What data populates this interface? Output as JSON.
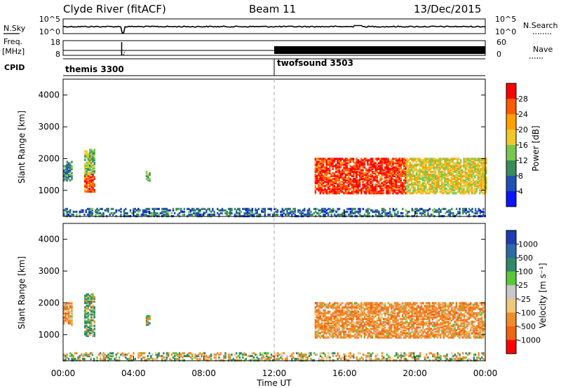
{
  "header": {
    "station": "Clyde River (fitACF)",
    "beam": "Beam 11",
    "date": "13/Dec/2015"
  },
  "top_panels": {
    "nsky_label": "N.Sky",
    "nsky_ticks": [
      "10^5",
      "10^0"
    ],
    "nsearch_label": "N.Search",
    "freq_label": "Freq.",
    "freq_unit": "[MHz]",
    "freq_ticks": [
      "18",
      "8"
    ],
    "nave_label": "Nave",
    "nave_ticks": [
      "60",
      "0"
    ],
    "cpid_label": "CPID",
    "cpid_segments": [
      {
        "name": "themis 3300",
        "start_hour": 0
      },
      {
        "name": "twofsound 3503",
        "start_hour": 12
      }
    ]
  },
  "power_panel": {
    "ylabel": "Slant Range [km]",
    "colorbar_label": "Power [dB]",
    "colorbar_ticks": [
      "28",
      "24",
      "20",
      "16",
      "12",
      "8",
      "4"
    ],
    "colors": [
      "#ff0000",
      "#ff5a00",
      "#ffa000",
      "#f0c828",
      "#78c850",
      "#3a8c5a",
      "#2050b4",
      "#0a14ff"
    ]
  },
  "velocity_panel": {
    "ylabel": "Slant Range [km]",
    "colorbar_label": "Velocity [m s⁻¹]",
    "colorbar_ticks": [
      "1000",
      "500",
      "100",
      "25",
      "-25",
      "-100",
      "-500",
      "-1000"
    ],
    "colors": [
      "#1e3cb4",
      "#2f6aa8",
      "#2f8a6a",
      "#5ac83c",
      "#c8c8c8",
      "#f0c878",
      "#f08c28",
      "#f06414",
      "#ff0000"
    ]
  },
  "xlabel": "Time UT",
  "chart_data": [
    {
      "type": "heatmap",
      "title": "Power [dB]",
      "xlabel": "Time UT",
      "ylabel": "Slant Range [km]",
      "x_ticks": [
        "00:00",
        "04:00",
        "08:00",
        "12:00",
        "16:00",
        "20:00",
        "00:00"
      ],
      "y_ticks": [
        1000,
        2000,
        3000,
        4000
      ],
      "xlim_hours": [
        0,
        24
      ],
      "ylim_km": [
        180,
        4500
      ],
      "colorbar_range_db": [
        0,
        32
      ],
      "features": [
        {
          "t_start_h": 0.0,
          "t_end_h": 0.5,
          "range_km": [
            1300,
            1900
          ],
          "value_db": 10
        },
        {
          "t_start_h": 1.2,
          "t_end_h": 1.8,
          "range_km": [
            950,
            1500
          ],
          "value_db": 26
        },
        {
          "t_start_h": 1.2,
          "t_end_h": 1.8,
          "range_km": [
            1500,
            2300
          ],
          "value_db": 14
        },
        {
          "t_start_h": 4.7,
          "t_end_h": 4.9,
          "range_km": [
            1300,
            1600
          ],
          "value_db": 12
        },
        {
          "t_start_h": 14.3,
          "t_end_h": 19.5,
          "range_km": [
            900,
            2000
          ],
          "value_db": 28
        },
        {
          "t_start_h": 19.5,
          "t_end_h": 24.0,
          "range_km": [
            900,
            2000
          ],
          "value_db": 18
        },
        {
          "t_start_h": 0.0,
          "t_end_h": 24.0,
          "range_km": [
            180,
            450
          ],
          "value_db": 8
        }
      ]
    },
    {
      "type": "heatmap",
      "title": "Velocity [m s⁻¹]",
      "xlabel": "Time UT",
      "ylabel": "Slant Range [km]",
      "x_ticks": [
        "00:00",
        "04:00",
        "08:00",
        "12:00",
        "16:00",
        "20:00",
        "00:00"
      ],
      "y_ticks": [
        1000,
        2000,
        3000,
        4000
      ],
      "xlim_hours": [
        0,
        24
      ],
      "ylim_km": [
        180,
        4500
      ],
      "colorbar_range": [
        -1000,
        1000
      ],
      "features": [
        {
          "t_start_h": 0.0,
          "t_end_h": 0.5,
          "range_km": [
            1300,
            2000
          ],
          "value": -300
        },
        {
          "t_start_h": 1.2,
          "t_end_h": 1.8,
          "range_km": [
            950,
            2300
          ],
          "value": 150
        },
        {
          "t_start_h": 4.7,
          "t_end_h": 4.9,
          "range_km": [
            1300,
            1600
          ],
          "value": 150
        },
        {
          "t_start_h": 14.3,
          "t_end_h": 24.0,
          "range_km": [
            900,
            2000
          ],
          "value": -300
        },
        {
          "t_start_h": 0.0,
          "t_end_h": 24.0,
          "range_km": [
            180,
            450
          ],
          "value": -30
        }
      ]
    }
  ]
}
